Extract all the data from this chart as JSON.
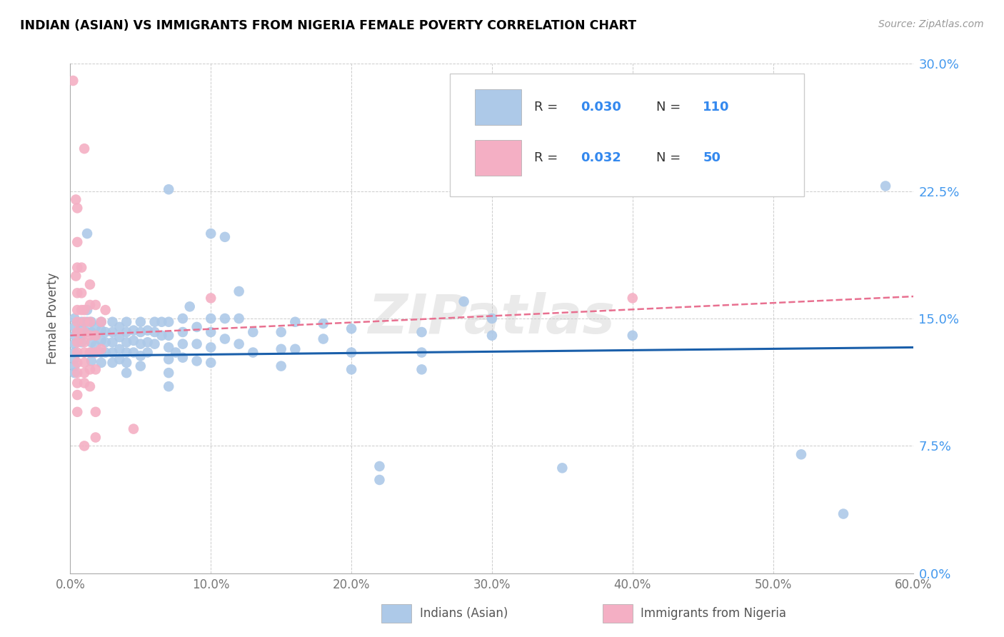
{
  "title": "INDIAN (ASIAN) VS IMMIGRANTS FROM NIGERIA FEMALE POVERTY CORRELATION CHART",
  "source": "Source: ZipAtlas.com",
  "xlabel_ticks": [
    "0.0%",
    "10.0%",
    "20.0%",
    "30.0%",
    "40.0%",
    "50.0%",
    "60.0%"
  ],
  "xlabel_vals": [
    0.0,
    0.1,
    0.2,
    0.3,
    0.4,
    0.5,
    0.6
  ],
  "ylabel_ticks": [
    "30.0%",
    "22.5%",
    "15.0%",
    "7.5%",
    "0.0%"
  ],
  "ylabel_vals": [
    0.3,
    0.225,
    0.15,
    0.075,
    0.0
  ],
  "ylabel_label": "Female Poverty",
  "legend_label1": "Indians (Asian)",
  "legend_label2": "Immigrants from Nigeria",
  "color_blue": "#adc9e8",
  "color_pink": "#f4afc4",
  "trendline_blue": "#1a5faa",
  "trendline_pink": "#e87090",
  "watermark": "ZIPatlas",
  "blue_scatter": [
    [
      0.003,
      0.15
    ],
    [
      0.003,
      0.145
    ],
    [
      0.003,
      0.14
    ],
    [
      0.003,
      0.135
    ],
    [
      0.003,
      0.13
    ],
    [
      0.003,
      0.126
    ],
    [
      0.003,
      0.122
    ],
    [
      0.003,
      0.118
    ],
    [
      0.008,
      0.148
    ],
    [
      0.008,
      0.144
    ],
    [
      0.008,
      0.14
    ],
    [
      0.008,
      0.136
    ],
    [
      0.012,
      0.2
    ],
    [
      0.012,
      0.155
    ],
    [
      0.012,
      0.148
    ],
    [
      0.012,
      0.142
    ],
    [
      0.015,
      0.148
    ],
    [
      0.015,
      0.142
    ],
    [
      0.015,
      0.136
    ],
    [
      0.015,
      0.13
    ],
    [
      0.015,
      0.125
    ],
    [
      0.018,
      0.145
    ],
    [
      0.018,
      0.14
    ],
    [
      0.018,
      0.134
    ],
    [
      0.022,
      0.148
    ],
    [
      0.022,
      0.143
    ],
    [
      0.022,
      0.137
    ],
    [
      0.022,
      0.13
    ],
    [
      0.022,
      0.124
    ],
    [
      0.025,
      0.142
    ],
    [
      0.025,
      0.136
    ],
    [
      0.025,
      0.13
    ],
    [
      0.03,
      0.148
    ],
    [
      0.03,
      0.142
    ],
    [
      0.03,
      0.136
    ],
    [
      0.03,
      0.13
    ],
    [
      0.03,
      0.124
    ],
    [
      0.035,
      0.145
    ],
    [
      0.035,
      0.139
    ],
    [
      0.035,
      0.132
    ],
    [
      0.035,
      0.126
    ],
    [
      0.04,
      0.148
    ],
    [
      0.04,
      0.142
    ],
    [
      0.04,
      0.136
    ],
    [
      0.04,
      0.13
    ],
    [
      0.04,
      0.124
    ],
    [
      0.04,
      0.118
    ],
    [
      0.045,
      0.143
    ],
    [
      0.045,
      0.137
    ],
    [
      0.045,
      0.13
    ],
    [
      0.05,
      0.148
    ],
    [
      0.05,
      0.142
    ],
    [
      0.05,
      0.135
    ],
    [
      0.05,
      0.128
    ],
    [
      0.05,
      0.122
    ],
    [
      0.055,
      0.143
    ],
    [
      0.055,
      0.136
    ],
    [
      0.055,
      0.13
    ],
    [
      0.06,
      0.148
    ],
    [
      0.06,
      0.142
    ],
    [
      0.06,
      0.135
    ],
    [
      0.065,
      0.148
    ],
    [
      0.065,
      0.14
    ],
    [
      0.07,
      0.226
    ],
    [
      0.07,
      0.148
    ],
    [
      0.07,
      0.14
    ],
    [
      0.07,
      0.133
    ],
    [
      0.07,
      0.126
    ],
    [
      0.07,
      0.118
    ],
    [
      0.07,
      0.11
    ],
    [
      0.075,
      0.13
    ],
    [
      0.08,
      0.15
    ],
    [
      0.08,
      0.142
    ],
    [
      0.08,
      0.135
    ],
    [
      0.08,
      0.127
    ],
    [
      0.085,
      0.157
    ],
    [
      0.09,
      0.145
    ],
    [
      0.09,
      0.135
    ],
    [
      0.09,
      0.125
    ],
    [
      0.1,
      0.2
    ],
    [
      0.1,
      0.15
    ],
    [
      0.1,
      0.142
    ],
    [
      0.1,
      0.133
    ],
    [
      0.1,
      0.124
    ],
    [
      0.11,
      0.198
    ],
    [
      0.11,
      0.15
    ],
    [
      0.11,
      0.138
    ],
    [
      0.12,
      0.166
    ],
    [
      0.12,
      0.15
    ],
    [
      0.12,
      0.135
    ],
    [
      0.13,
      0.142
    ],
    [
      0.13,
      0.13
    ],
    [
      0.15,
      0.142
    ],
    [
      0.15,
      0.132
    ],
    [
      0.15,
      0.122
    ],
    [
      0.16,
      0.148
    ],
    [
      0.16,
      0.132
    ],
    [
      0.18,
      0.147
    ],
    [
      0.18,
      0.138
    ],
    [
      0.2,
      0.144
    ],
    [
      0.2,
      0.13
    ],
    [
      0.2,
      0.12
    ],
    [
      0.22,
      0.063
    ],
    [
      0.22,
      0.055
    ],
    [
      0.25,
      0.142
    ],
    [
      0.25,
      0.13
    ],
    [
      0.25,
      0.12
    ],
    [
      0.28,
      0.16
    ],
    [
      0.3,
      0.15
    ],
    [
      0.3,
      0.14
    ],
    [
      0.35,
      0.062
    ],
    [
      0.4,
      0.14
    ],
    [
      0.52,
      0.07
    ],
    [
      0.55,
      0.035
    ],
    [
      0.58,
      0.228
    ]
  ],
  "pink_scatter": [
    [
      0.002,
      0.29
    ],
    [
      0.004,
      0.22
    ],
    [
      0.004,
      0.175
    ],
    [
      0.005,
      0.215
    ],
    [
      0.005,
      0.195
    ],
    [
      0.005,
      0.18
    ],
    [
      0.005,
      0.165
    ],
    [
      0.005,
      0.155
    ],
    [
      0.005,
      0.148
    ],
    [
      0.005,
      0.142
    ],
    [
      0.005,
      0.136
    ],
    [
      0.005,
      0.13
    ],
    [
      0.005,
      0.124
    ],
    [
      0.005,
      0.118
    ],
    [
      0.005,
      0.112
    ],
    [
      0.005,
      0.105
    ],
    [
      0.005,
      0.095
    ],
    [
      0.008,
      0.18
    ],
    [
      0.008,
      0.165
    ],
    [
      0.008,
      0.155
    ],
    [
      0.01,
      0.25
    ],
    [
      0.01,
      0.155
    ],
    [
      0.01,
      0.148
    ],
    [
      0.01,
      0.142
    ],
    [
      0.01,
      0.136
    ],
    [
      0.01,
      0.13
    ],
    [
      0.01,
      0.124
    ],
    [
      0.01,
      0.118
    ],
    [
      0.01,
      0.112
    ],
    [
      0.01,
      0.075
    ],
    [
      0.014,
      0.17
    ],
    [
      0.014,
      0.158
    ],
    [
      0.014,
      0.148
    ],
    [
      0.014,
      0.14
    ],
    [
      0.014,
      0.13
    ],
    [
      0.014,
      0.12
    ],
    [
      0.014,
      0.11
    ],
    [
      0.018,
      0.158
    ],
    [
      0.018,
      0.14
    ],
    [
      0.018,
      0.13
    ],
    [
      0.018,
      0.12
    ],
    [
      0.018,
      0.095
    ],
    [
      0.018,
      0.08
    ],
    [
      0.022,
      0.148
    ],
    [
      0.022,
      0.132
    ],
    [
      0.025,
      0.155
    ],
    [
      0.045,
      0.085
    ],
    [
      0.1,
      0.162
    ],
    [
      0.4,
      0.162
    ]
  ],
  "xlim": [
    0.0,
    0.6
  ],
  "ylim": [
    0.0,
    0.3
  ],
  "blue_trend_x": [
    0.0,
    0.6
  ],
  "blue_trend_y": [
    0.128,
    0.133
  ],
  "pink_trend_x": [
    0.0,
    0.6
  ],
  "pink_trend_y": [
    0.14,
    0.163
  ]
}
